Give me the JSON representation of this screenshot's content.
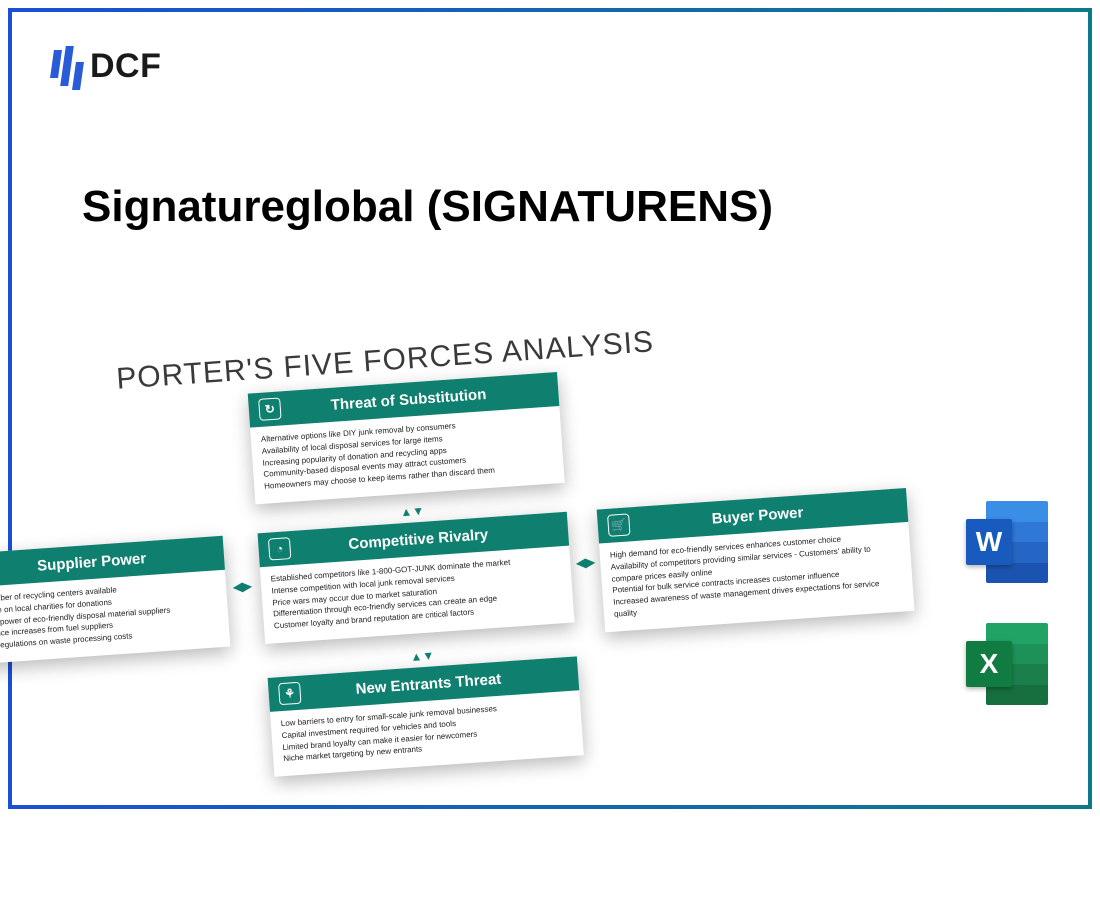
{
  "logo": {
    "text": "DCF",
    "bar_color": "#2a5bd7"
  },
  "title": "Signatureglobal (SIGNATURENS)",
  "diagram": {
    "title": "PORTER'S FIVE FORCES ANALYSIS",
    "header_bg": "#0f7f6f",
    "header_fg": "#ffffff",
    "card_bg": "#ffffff",
    "body_text_color": "#222222",
    "shadow": "rgba(0,0,0,0.28)",
    "cards": {
      "substitution": {
        "title": "Threat of Substitution",
        "icon": "↻",
        "lines": [
          "Alternative options like DIY junk removal by consumers",
          "Availability of local disposal services for large items",
          "Increasing popularity of donation and recycling apps",
          "Community-based disposal events may attract customers",
          "Homeowners may choose to keep items rather than discard them"
        ]
      },
      "supplier": {
        "title": "Supplier Power",
        "icon": "⊟",
        "lines": [
          "imited number of recycling centers available",
          "ependence on local charities for donations",
          "egotiation power of eco-friendly disposal material suppliers",
          "otential price increases from fuel suppliers",
          "mpact of regulations on waste processing costs"
        ]
      },
      "rivalry": {
        "title": "Competitive Rivalry",
        "icon": "◔",
        "lines": [
          "Established competitors like 1-800-GOT-JUNK dominate the market",
          "Intense competition with local junk removal services",
          "Price wars may occur due to market saturation",
          "Differentiation through eco-friendly services can create an edge",
          "Customer loyalty and brand reputation are critical factors"
        ]
      },
      "buyer": {
        "title": "Buyer Power",
        "icon": "🛒",
        "lines": [
          "High demand for eco-friendly services enhances customer choice",
          "Availability of competitors providing similar services - Customers' ability to",
          "compare prices easily online",
          "Potential for bulk service contracts increases customer influence",
          "Increased awareness of waste management drives expectations for service",
          "quality"
        ]
      },
      "entrants": {
        "title": "New Entrants Threat",
        "icon": "⚘",
        "lines": [
          "Low barriers to entry for small-scale junk removal businesses",
          "Capital investment required for vehicles and tools",
          "Limited brand loyalty can make it easier for newcomers",
          "Niche market targeting by new entrants"
        ]
      }
    }
  },
  "file_icons": {
    "word": {
      "letter": "W",
      "badge_color": "#185abd",
      "stripes": [
        "#3a8ee6",
        "#2f78d6",
        "#2566c4",
        "#1b54b0"
      ]
    },
    "excel": {
      "letter": "X",
      "badge_color": "#107c41",
      "stripes": [
        "#21a366",
        "#1e9158",
        "#1b7f4b",
        "#176e3f"
      ]
    }
  }
}
